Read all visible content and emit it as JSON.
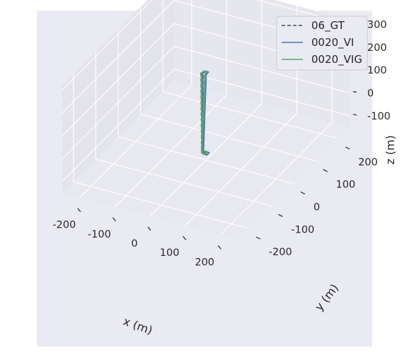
{
  "chart_data": {
    "type": "line",
    "projection": "3d",
    "title": "",
    "xlabel": "x (m)",
    "ylabel": "y (m)",
    "zlabel": "z (m)",
    "x_ticks": [
      -200,
      -100,
      0,
      100,
      200
    ],
    "y_ticks": [
      -200,
      -100,
      0,
      100,
      200
    ],
    "z_ticks": [
      -100,
      0,
      100,
      200,
      300
    ],
    "xlim": [
      -250,
      250
    ],
    "ylim": [
      -250,
      250
    ],
    "zlim": [
      -150,
      320
    ],
    "grid": true,
    "legend_position": "top-right",
    "colors": {
      "background": "#eaeaf2",
      "grid": "#ffffff"
    },
    "series": [
      {
        "name": "06_GT",
        "color": "#4d4d4d",
        "dash": "dashed",
        "points": [
          [
            -10,
            -3,
            -120
          ],
          [
            -10,
            3,
            -120
          ],
          [
            -4,
            3,
            -120
          ],
          [
            -4,
            -3,
            -120
          ],
          [
            -10,
            -3,
            -120
          ],
          [
            -12,
            -3,
            230
          ],
          [
            -12,
            3,
            230
          ],
          [
            -6,
            3,
            230
          ],
          [
            -6,
            -3,
            230
          ],
          [
            -10,
            -3,
            -120
          ]
        ]
      },
      {
        "name": "0020_VI",
        "color": "#4c72b0",
        "dash": "solid",
        "points": [
          [
            -4,
            -5,
            -120
          ],
          [
            -4,
            5,
            -120
          ],
          [
            6,
            5,
            -120
          ],
          [
            6,
            -5,
            -120
          ],
          [
            -4,
            -5,
            -120
          ],
          [
            -6,
            -5,
            232
          ],
          [
            -6,
            5,
            232
          ],
          [
            4,
            5,
            232
          ],
          [
            4,
            -5,
            232
          ],
          [
            -4,
            -5,
            -120
          ]
        ]
      },
      {
        "name": "0020_VIG",
        "color": "#55a868",
        "dash": "solid",
        "points": [
          [
            -8,
            -5,
            -118
          ],
          [
            -8,
            5,
            -118
          ],
          [
            2,
            5,
            -118
          ],
          [
            2,
            -5,
            -118
          ],
          [
            -8,
            -5,
            -118
          ],
          [
            -10,
            -5,
            230
          ],
          [
            -10,
            5,
            230
          ],
          [
            0,
            5,
            230
          ],
          [
            0,
            -5,
            230
          ],
          [
            -8,
            -5,
            -118
          ]
        ]
      }
    ]
  }
}
